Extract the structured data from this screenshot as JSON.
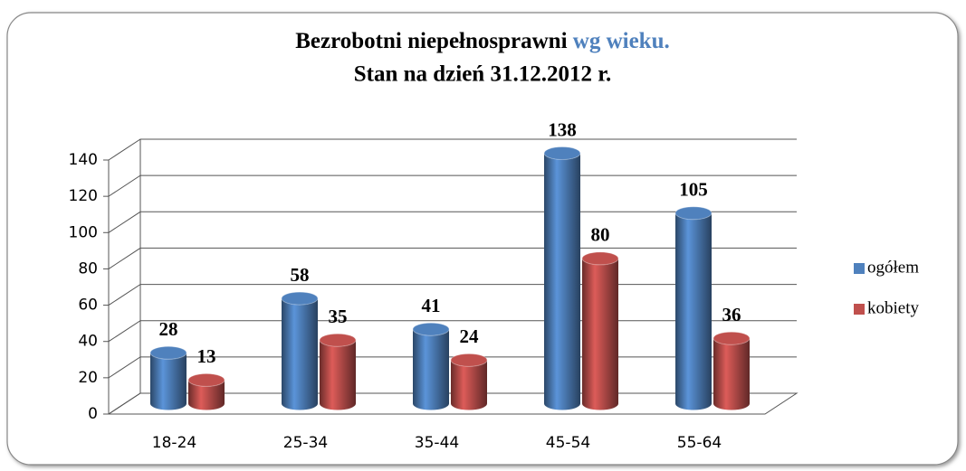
{
  "chart_data": {
    "type": "bar3d",
    "title_parts": [
      "Bezrobotni niepełnosprawni",
      "wg wieku.",
      "Stan na dzień 31.12.2012 r."
    ],
    "title_colors": [
      "#000000",
      "#4f81bd",
      "#000000"
    ],
    "categories": [
      "18-24",
      "25-34",
      "35-44",
      "45-54",
      "55-64"
    ],
    "series": [
      {
        "name": "ogółem",
        "color": "#4f81bd",
        "values": [
          28,
          58,
          41,
          138,
          105
        ]
      },
      {
        "name": "kobiety",
        "color": "#c0504d",
        "values": [
          13,
          35,
          24,
          80,
          36
        ]
      }
    ],
    "ylim": [
      0,
      140
    ],
    "yticks": [
      0,
      20,
      40,
      60,
      80,
      100,
      120,
      140
    ],
    "grid": true,
    "legend": "right"
  }
}
